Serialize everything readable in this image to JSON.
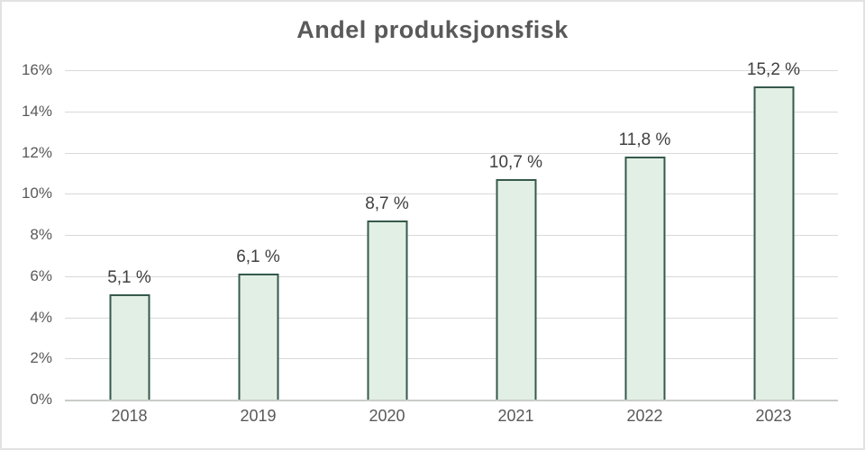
{
  "title": "Andel produksjonsfisk",
  "chart_data": {
    "type": "bar",
    "title": "Andel produksjonsfisk",
    "categories": [
      "2018",
      "2019",
      "2020",
      "2021",
      "2022",
      "2023"
    ],
    "values": [
      5.1,
      6.1,
      8.7,
      10.7,
      11.8,
      15.2
    ],
    "bar_labels": [
      "5,1 %",
      "6,1 %",
      "8,7 %",
      "10,7 %",
      "11,8 %",
      "15,2 %"
    ],
    "xlabel": "",
    "ylabel": "",
    "ylim": [
      0,
      16
    ],
    "y_tick_step": 2,
    "y_tick_labels": [
      "0%",
      "2%",
      "4%",
      "6%",
      "8%",
      "10%",
      "12%",
      "14%",
      "16%"
    ],
    "grid": true,
    "legend": "none",
    "colors": {
      "bar_fill": "#e2efe4",
      "bar_border": "#36594c",
      "gridline": "#d9d9d9",
      "axis_line": "#c9cdc9",
      "title_text": "#595959",
      "axis_text": "#595959",
      "value_label_text": "#404040",
      "background": "#ffffff"
    }
  }
}
